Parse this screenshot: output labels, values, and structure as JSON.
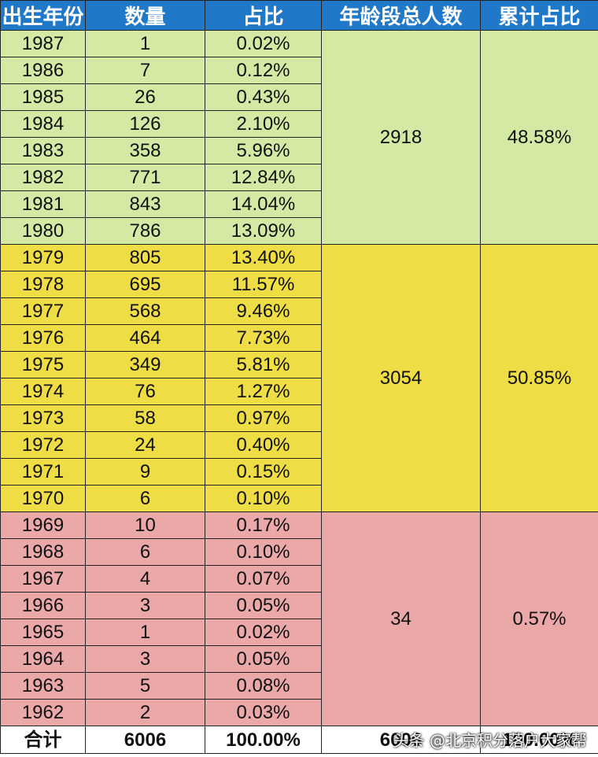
{
  "headers": [
    "出生年份",
    "数量",
    "占比",
    "年龄段总人数",
    "累计占比"
  ],
  "colors": {
    "header": "#1f78c8",
    "group_a": "#d4eaa4",
    "group_b": "#eedd44",
    "group_c": "#eaa8a8"
  },
  "groups": [
    {
      "total": "2918",
      "cumulative": "48.58%",
      "rows": [
        {
          "year": "1987",
          "count": "1",
          "pct": "0.02%"
        },
        {
          "year": "1986",
          "count": "7",
          "pct": "0.12%"
        },
        {
          "year": "1985",
          "count": "26",
          "pct": "0.43%"
        },
        {
          "year": "1984",
          "count": "126",
          "pct": "2.10%"
        },
        {
          "year": "1983",
          "count": "358",
          "pct": "5.96%"
        },
        {
          "year": "1982",
          "count": "771",
          "pct": "12.84%"
        },
        {
          "year": "1981",
          "count": "843",
          "pct": "14.04%"
        },
        {
          "year": "1980",
          "count": "786",
          "pct": "13.09%"
        }
      ]
    },
    {
      "total": "3054",
      "cumulative": "50.85%",
      "rows": [
        {
          "year": "1979",
          "count": "805",
          "pct": "13.40%"
        },
        {
          "year": "1978",
          "count": "695",
          "pct": "11.57%"
        },
        {
          "year": "1977",
          "count": "568",
          "pct": "9.46%"
        },
        {
          "year": "1976",
          "count": "464",
          "pct": "7.73%"
        },
        {
          "year": "1975",
          "count": "349",
          "pct": "5.81%"
        },
        {
          "year": "1974",
          "count": "76",
          "pct": "1.27%"
        },
        {
          "year": "1973",
          "count": "58",
          "pct": "0.97%"
        },
        {
          "year": "1972",
          "count": "24",
          "pct": "0.40%"
        },
        {
          "year": "1971",
          "count": "9",
          "pct": "0.15%"
        },
        {
          "year": "1970",
          "count": "6",
          "pct": "0.10%"
        }
      ]
    },
    {
      "total": "34",
      "cumulative": "0.57%",
      "rows": [
        {
          "year": "1969",
          "count": "10",
          "pct": "0.17%"
        },
        {
          "year": "1968",
          "count": "6",
          "pct": "0.10%"
        },
        {
          "year": "1967",
          "count": "4",
          "pct": "0.07%"
        },
        {
          "year": "1966",
          "count": "3",
          "pct": "0.05%"
        },
        {
          "year": "1965",
          "count": "1",
          "pct": "0.02%"
        },
        {
          "year": "1964",
          "count": "3",
          "pct": "0.05%"
        },
        {
          "year": "1963",
          "count": "5",
          "pct": "0.08%"
        },
        {
          "year": "1962",
          "count": "2",
          "pct": "0.03%"
        }
      ]
    }
  ],
  "total_row": {
    "label": "合计",
    "count": "6006",
    "pct": "100.00%",
    "group_total": "6006",
    "cumulative": "100.00%"
  },
  "watermark": "头条 @北京积分落户大家帮"
}
